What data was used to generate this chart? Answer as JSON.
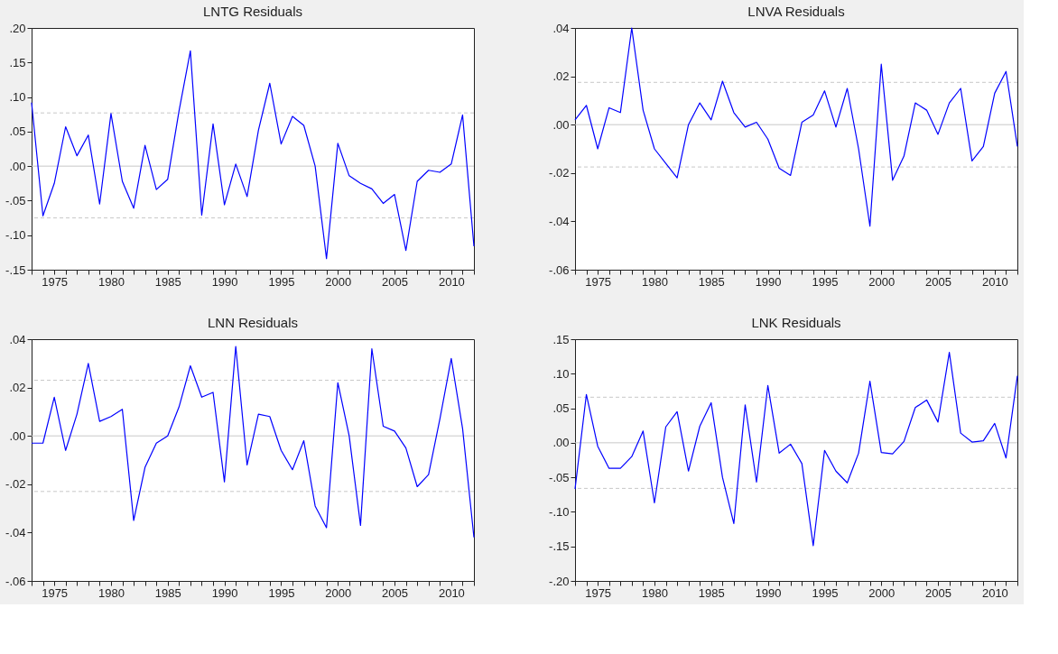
{
  "chart_data": [
    {
      "type": "line",
      "title": "LNTG Residuals",
      "x": [
        1973,
        1974,
        1975,
        1976,
        1977,
        1978,
        1979,
        1980,
        1981,
        1982,
        1983,
        1984,
        1985,
        1986,
        1987,
        1988,
        1989,
        1990,
        1991,
        1992,
        1993,
        1994,
        1995,
        1996,
        1997,
        1998,
        1999,
        2000,
        2001,
        2002,
        2003,
        2004,
        2005,
        2006,
        2007,
        2008,
        2009,
        2010,
        2011,
        2012
      ],
      "series": [
        {
          "color": "#0000ff",
          "values": [
            0.092,
            -0.072,
            -0.025,
            0.057,
            0.015,
            0.045,
            -0.055,
            0.076,
            -0.022,
            -0.061,
            0.03,
            -0.034,
            -0.019,
            0.08,
            0.167,
            -0.071,
            0.061,
            -0.056,
            0.003,
            -0.044,
            0.052,
            0.12,
            0.032,
            0.072,
            0.059,
            0.0,
            -0.134,
            0.033,
            -0.014,
            -0.025,
            -0.033,
            -0.054,
            -0.041,
            -0.122,
            -0.022,
            -0.006,
            -0.009,
            0.003,
            0.074,
            -0.116
          ]
        }
      ],
      "xlim": [
        1973,
        2012
      ],
      "xticks": [
        {
          "value": 1973,
          "label": null
        },
        {
          "value": 1974,
          "label": null
        },
        1975,
        {
          "value": 1976,
          "label": null
        },
        {
          "value": 1977,
          "label": null
        },
        {
          "value": 1978,
          "label": null
        },
        {
          "value": 1979,
          "label": null
        },
        1980,
        {
          "value": 1981,
          "label": null
        },
        {
          "value": 1982,
          "label": null
        },
        {
          "value": 1983,
          "label": null
        },
        {
          "value": 1984,
          "label": null
        },
        1985,
        {
          "value": 1986,
          "label": null
        },
        {
          "value": 1987,
          "label": null
        },
        {
          "value": 1988,
          "label": null
        },
        {
          "value": 1989,
          "label": null
        },
        1990,
        {
          "value": 1991,
          "label": null
        },
        {
          "value": 1992,
          "label": null
        },
        {
          "value": 1993,
          "label": null
        },
        {
          "value": 1994,
          "label": null
        },
        1995,
        {
          "value": 1996,
          "label": null
        },
        {
          "value": 1997,
          "label": null
        },
        {
          "value": 1998,
          "label": null
        },
        {
          "value": 1999,
          "label": null
        },
        2000,
        {
          "value": 2001,
          "label": null
        },
        {
          "value": 2002,
          "label": null
        },
        {
          "value": 2003,
          "label": null
        },
        {
          "value": 2004,
          "label": null
        },
        2005,
        {
          "value": 2006,
          "label": null
        },
        {
          "value": 2007,
          "label": null
        },
        {
          "value": 2008,
          "label": null
        },
        {
          "value": 2009,
          "label": null
        },
        2010,
        {
          "value": 2011,
          "label": null
        },
        {
          "value": 2012,
          "label": null
        }
      ],
      "ylim": [
        -0.15,
        0.2
      ],
      "yticks": [
        {
          "value": -0.15,
          "label": "-.15"
        },
        {
          "value": -0.1,
          "label": "-.10"
        },
        {
          "value": -0.05,
          "label": "-.05"
        },
        {
          "value": 0,
          "label": ".00"
        },
        {
          "value": 0.05,
          "label": ".05"
        },
        {
          "value": 0.1,
          "label": ".10"
        },
        {
          "value": 0.15,
          "label": ".15"
        },
        {
          "value": 0.2,
          "label": ".20"
        }
      ],
      "ref_lines": [
        {
          "axis": "y",
          "value": 0,
          "color": "#c8c8c8",
          "line_style": "solid"
        },
        {
          "axis": "y",
          "value": 0.077,
          "color": "#c8c8c8",
          "line_style": "dashed"
        },
        {
          "axis": "y",
          "value": -0.075,
          "color": "#c8c8c8",
          "line_style": "dashed"
        }
      ],
      "grid": false,
      "legend": false,
      "marker": "none",
      "line_style": "solid"
    },
    {
      "type": "line",
      "title": "LNVA Residuals",
      "x": [
        1973,
        1974,
        1975,
        1976,
        1977,
        1978,
        1979,
        1980,
        1981,
        1982,
        1983,
        1984,
        1985,
        1986,
        1987,
        1988,
        1989,
        1990,
        1991,
        1992,
        1993,
        1994,
        1995,
        1996,
        1997,
        1998,
        1999,
        2000,
        2001,
        2002,
        2003,
        2004,
        2005,
        2006,
        2007,
        2008,
        2009,
        2010,
        2011,
        2012
      ],
      "series": [
        {
          "color": "#0000ff",
          "values": [
            0.002,
            0.008,
            -0.01,
            0.007,
            0.005,
            0.04,
            0.006,
            -0.01,
            -0.016,
            -0.022,
            0.0,
            0.009,
            0.002,
            0.018,
            0.005,
            -0.001,
            0.001,
            -0.006,
            -0.018,
            -0.021,
            0.001,
            0.004,
            0.014,
            -0.001,
            0.015,
            -0.01,
            -0.042,
            0.025,
            -0.023,
            -0.013,
            0.009,
            0.006,
            -0.004,
            0.009,
            0.015,
            -0.015,
            -0.009,
            0.013,
            0.022,
            -0.009
          ]
        }
      ],
      "xlim": [
        1973,
        2012
      ],
      "xticks": [
        {
          "value": 1973,
          "label": null
        },
        {
          "value": 1974,
          "label": null
        },
        1975,
        {
          "value": 1976,
          "label": null
        },
        {
          "value": 1977,
          "label": null
        },
        {
          "value": 1978,
          "label": null
        },
        {
          "value": 1979,
          "label": null
        },
        1980,
        {
          "value": 1981,
          "label": null
        },
        {
          "value": 1982,
          "label": null
        },
        {
          "value": 1983,
          "label": null
        },
        {
          "value": 1984,
          "label": null
        },
        1985,
        {
          "value": 1986,
          "label": null
        },
        {
          "value": 1987,
          "label": null
        },
        {
          "value": 1988,
          "label": null
        },
        {
          "value": 1989,
          "label": null
        },
        1990,
        {
          "value": 1991,
          "label": null
        },
        {
          "value": 1992,
          "label": null
        },
        {
          "value": 1993,
          "label": null
        },
        {
          "value": 1994,
          "label": null
        },
        1995,
        {
          "value": 1996,
          "label": null
        },
        {
          "value": 1997,
          "label": null
        },
        {
          "value": 1998,
          "label": null
        },
        {
          "value": 1999,
          "label": null
        },
        2000,
        {
          "value": 2001,
          "label": null
        },
        {
          "value": 2002,
          "label": null
        },
        {
          "value": 2003,
          "label": null
        },
        {
          "value": 2004,
          "label": null
        },
        2005,
        {
          "value": 2006,
          "label": null
        },
        {
          "value": 2007,
          "label": null
        },
        {
          "value": 2008,
          "label": null
        },
        {
          "value": 2009,
          "label": null
        },
        2010,
        {
          "value": 2011,
          "label": null
        },
        {
          "value": 2012,
          "label": null
        }
      ],
      "ylim": [
        -0.06,
        0.04
      ],
      "yticks": [
        {
          "value": -0.06,
          "label": "-.06"
        },
        {
          "value": -0.04,
          "label": "-.04"
        },
        {
          "value": -0.02,
          "label": "-.02"
        },
        {
          "value": 0,
          "label": ".00"
        },
        {
          "value": 0.02,
          "label": ".02"
        },
        {
          "value": 0.04,
          "label": ".04"
        }
      ],
      "ref_lines": [
        {
          "axis": "y",
          "value": 0,
          "color": "#c8c8c8",
          "line_style": "solid"
        },
        {
          "axis": "y",
          "value": 0.0175,
          "color": "#c8c8c8",
          "line_style": "dashed"
        },
        {
          "axis": "y",
          "value": -0.0175,
          "color": "#c8c8c8",
          "line_style": "dashed"
        }
      ],
      "grid": false,
      "legend": false,
      "marker": "none",
      "line_style": "solid"
    },
    {
      "type": "line",
      "title": "LNN Residuals",
      "x": [
        1973,
        1974,
        1975,
        1976,
        1977,
        1978,
        1979,
        1980,
        1981,
        1982,
        1983,
        1984,
        1985,
        1986,
        1987,
        1988,
        1989,
        1990,
        1991,
        1992,
        1993,
        1994,
        1995,
        1996,
        1997,
        1998,
        1999,
        2000,
        2001,
        2002,
        2003,
        2004,
        2005,
        2006,
        2007,
        2008,
        2009,
        2010,
        2011,
        2012
      ],
      "series": [
        {
          "color": "#0000ff",
          "values": [
            -0.003,
            -0.003,
            0.016,
            -0.006,
            0.009,
            0.03,
            0.006,
            0.008,
            0.011,
            -0.035,
            -0.013,
            -0.003,
            0.0,
            0.012,
            0.029,
            0.016,
            0.018,
            -0.019,
            0.037,
            -0.012,
            0.009,
            0.008,
            -0.006,
            -0.014,
            -0.002,
            -0.029,
            -0.038,
            0.022,
            0.0,
            -0.037,
            0.036,
            0.004,
            0.002,
            -0.005,
            -0.021,
            -0.016,
            0.007,
            0.032,
            0.003,
            -0.042
          ]
        }
      ],
      "xlim": [
        1973,
        2012
      ],
      "xticks": [
        {
          "value": 1973,
          "label": null
        },
        {
          "value": 1974,
          "label": null
        },
        1975,
        {
          "value": 1976,
          "label": null
        },
        {
          "value": 1977,
          "label": null
        },
        {
          "value": 1978,
          "label": null
        },
        {
          "value": 1979,
          "label": null
        },
        1980,
        {
          "value": 1981,
          "label": null
        },
        {
          "value": 1982,
          "label": null
        },
        {
          "value": 1983,
          "label": null
        },
        {
          "value": 1984,
          "label": null
        },
        1985,
        {
          "value": 1986,
          "label": null
        },
        {
          "value": 1987,
          "label": null
        },
        {
          "value": 1988,
          "label": null
        },
        {
          "value": 1989,
          "label": null
        },
        1990,
        {
          "value": 1991,
          "label": null
        },
        {
          "value": 1992,
          "label": null
        },
        {
          "value": 1993,
          "label": null
        },
        {
          "value": 1994,
          "label": null
        },
        1995,
        {
          "value": 1996,
          "label": null
        },
        {
          "value": 1997,
          "label": null
        },
        {
          "value": 1998,
          "label": null
        },
        {
          "value": 1999,
          "label": null
        },
        2000,
        {
          "value": 2001,
          "label": null
        },
        {
          "value": 2002,
          "label": null
        },
        {
          "value": 2003,
          "label": null
        },
        {
          "value": 2004,
          "label": null
        },
        2005,
        {
          "value": 2006,
          "label": null
        },
        {
          "value": 2007,
          "label": null
        },
        {
          "value": 2008,
          "label": null
        },
        {
          "value": 2009,
          "label": null
        },
        2010,
        {
          "value": 2011,
          "label": null
        },
        {
          "value": 2012,
          "label": null
        }
      ],
      "ylim": [
        -0.06,
        0.04
      ],
      "yticks": [
        {
          "value": -0.06,
          "label": "-.06"
        },
        {
          "value": -0.04,
          "label": "-.04"
        },
        {
          "value": -0.02,
          "label": "-.02"
        },
        {
          "value": 0,
          "label": ".00"
        },
        {
          "value": 0.02,
          "label": ".02"
        },
        {
          "value": 0.04,
          "label": ".04"
        }
      ],
      "ref_lines": [
        {
          "axis": "y",
          "value": 0,
          "color": "#c8c8c8",
          "line_style": "solid"
        },
        {
          "axis": "y",
          "value": 0.023,
          "color": "#c8c8c8",
          "line_style": "dashed"
        },
        {
          "axis": "y",
          "value": -0.023,
          "color": "#c8c8c8",
          "line_style": "dashed"
        }
      ],
      "grid": false,
      "legend": false,
      "marker": "none",
      "line_style": "solid"
    },
    {
      "type": "line",
      "title": "LNK Residuals",
      "x": [
        1973,
        1974,
        1975,
        1976,
        1977,
        1978,
        1979,
        1980,
        1981,
        1982,
        1983,
        1984,
        1985,
        1986,
        1987,
        1988,
        1989,
        1990,
        1991,
        1992,
        1993,
        1994,
        1995,
        1996,
        1997,
        1998,
        1999,
        2000,
        2001,
        2002,
        2003,
        2004,
        2005,
        2006,
        2007,
        2008,
        2009,
        2010,
        2011,
        2012
      ],
      "series": [
        {
          "color": "#0000ff",
          "values": [
            -0.067,
            0.07,
            -0.005,
            -0.037,
            -0.037,
            -0.02,
            0.017,
            -0.087,
            0.023,
            0.045,
            -0.041,
            0.024,
            0.058,
            -0.05,
            -0.117,
            0.055,
            -0.057,
            0.083,
            -0.015,
            -0.002,
            -0.03,
            -0.149,
            -0.011,
            -0.041,
            -0.058,
            -0.015,
            0.089,
            -0.014,
            -0.016,
            0.002,
            0.051,
            0.062,
            0.03,
            0.131,
            0.014,
            0.001,
            0.003,
            0.028,
            -0.022,
            0.097
          ]
        }
      ],
      "xlim": [
        1973,
        2012
      ],
      "xticks": [
        {
          "value": 1973,
          "label": null
        },
        {
          "value": 1974,
          "label": null
        },
        1975,
        {
          "value": 1976,
          "label": null
        },
        {
          "value": 1977,
          "label": null
        },
        {
          "value": 1978,
          "label": null
        },
        {
          "value": 1979,
          "label": null
        },
        1980,
        {
          "value": 1981,
          "label": null
        },
        {
          "value": 1982,
          "label": null
        },
        {
          "value": 1983,
          "label": null
        },
        {
          "value": 1984,
          "label": null
        },
        1985,
        {
          "value": 1986,
          "label": null
        },
        {
          "value": 1987,
          "label": null
        },
        {
          "value": 1988,
          "label": null
        },
        {
          "value": 1989,
          "label": null
        },
        1990,
        {
          "value": 1991,
          "label": null
        },
        {
          "value": 1992,
          "label": null
        },
        {
          "value": 1993,
          "label": null
        },
        {
          "value": 1994,
          "label": null
        },
        1995,
        {
          "value": 1996,
          "label": null
        },
        {
          "value": 1997,
          "label": null
        },
        {
          "value": 1998,
          "label": null
        },
        {
          "value": 1999,
          "label": null
        },
        2000,
        {
          "value": 2001,
          "label": null
        },
        {
          "value": 2002,
          "label": null
        },
        {
          "value": 2003,
          "label": null
        },
        {
          "value": 2004,
          "label": null
        },
        2005,
        {
          "value": 2006,
          "label": null
        },
        {
          "value": 2007,
          "label": null
        },
        {
          "value": 2008,
          "label": null
        },
        {
          "value": 2009,
          "label": null
        },
        2010,
        {
          "value": 2011,
          "label": null
        },
        {
          "value": 2012,
          "label": null
        }
      ],
      "ylim": [
        -0.2,
        0.15
      ],
      "yticks": [
        {
          "value": -0.2,
          "label": "-.20"
        },
        {
          "value": -0.15,
          "label": "-.15"
        },
        {
          "value": -0.1,
          "label": "-.10"
        },
        {
          "value": -0.05,
          "label": "-.05"
        },
        {
          "value": 0,
          "label": ".00"
        },
        {
          "value": 0.05,
          "label": ".05"
        },
        {
          "value": 0.1,
          "label": ".10"
        },
        {
          "value": 0.15,
          "label": ".15"
        }
      ],
      "ref_lines": [
        {
          "axis": "y",
          "value": 0,
          "color": "#c8c8c8",
          "line_style": "solid"
        },
        {
          "axis": "y",
          "value": 0.066,
          "color": "#c8c8c8",
          "line_style": "dashed"
        },
        {
          "axis": "y",
          "value": -0.066,
          "color": "#c8c8c8",
          "line_style": "dashed"
        }
      ],
      "grid": false,
      "legend": false,
      "marker": "none",
      "line_style": "solid"
    }
  ]
}
